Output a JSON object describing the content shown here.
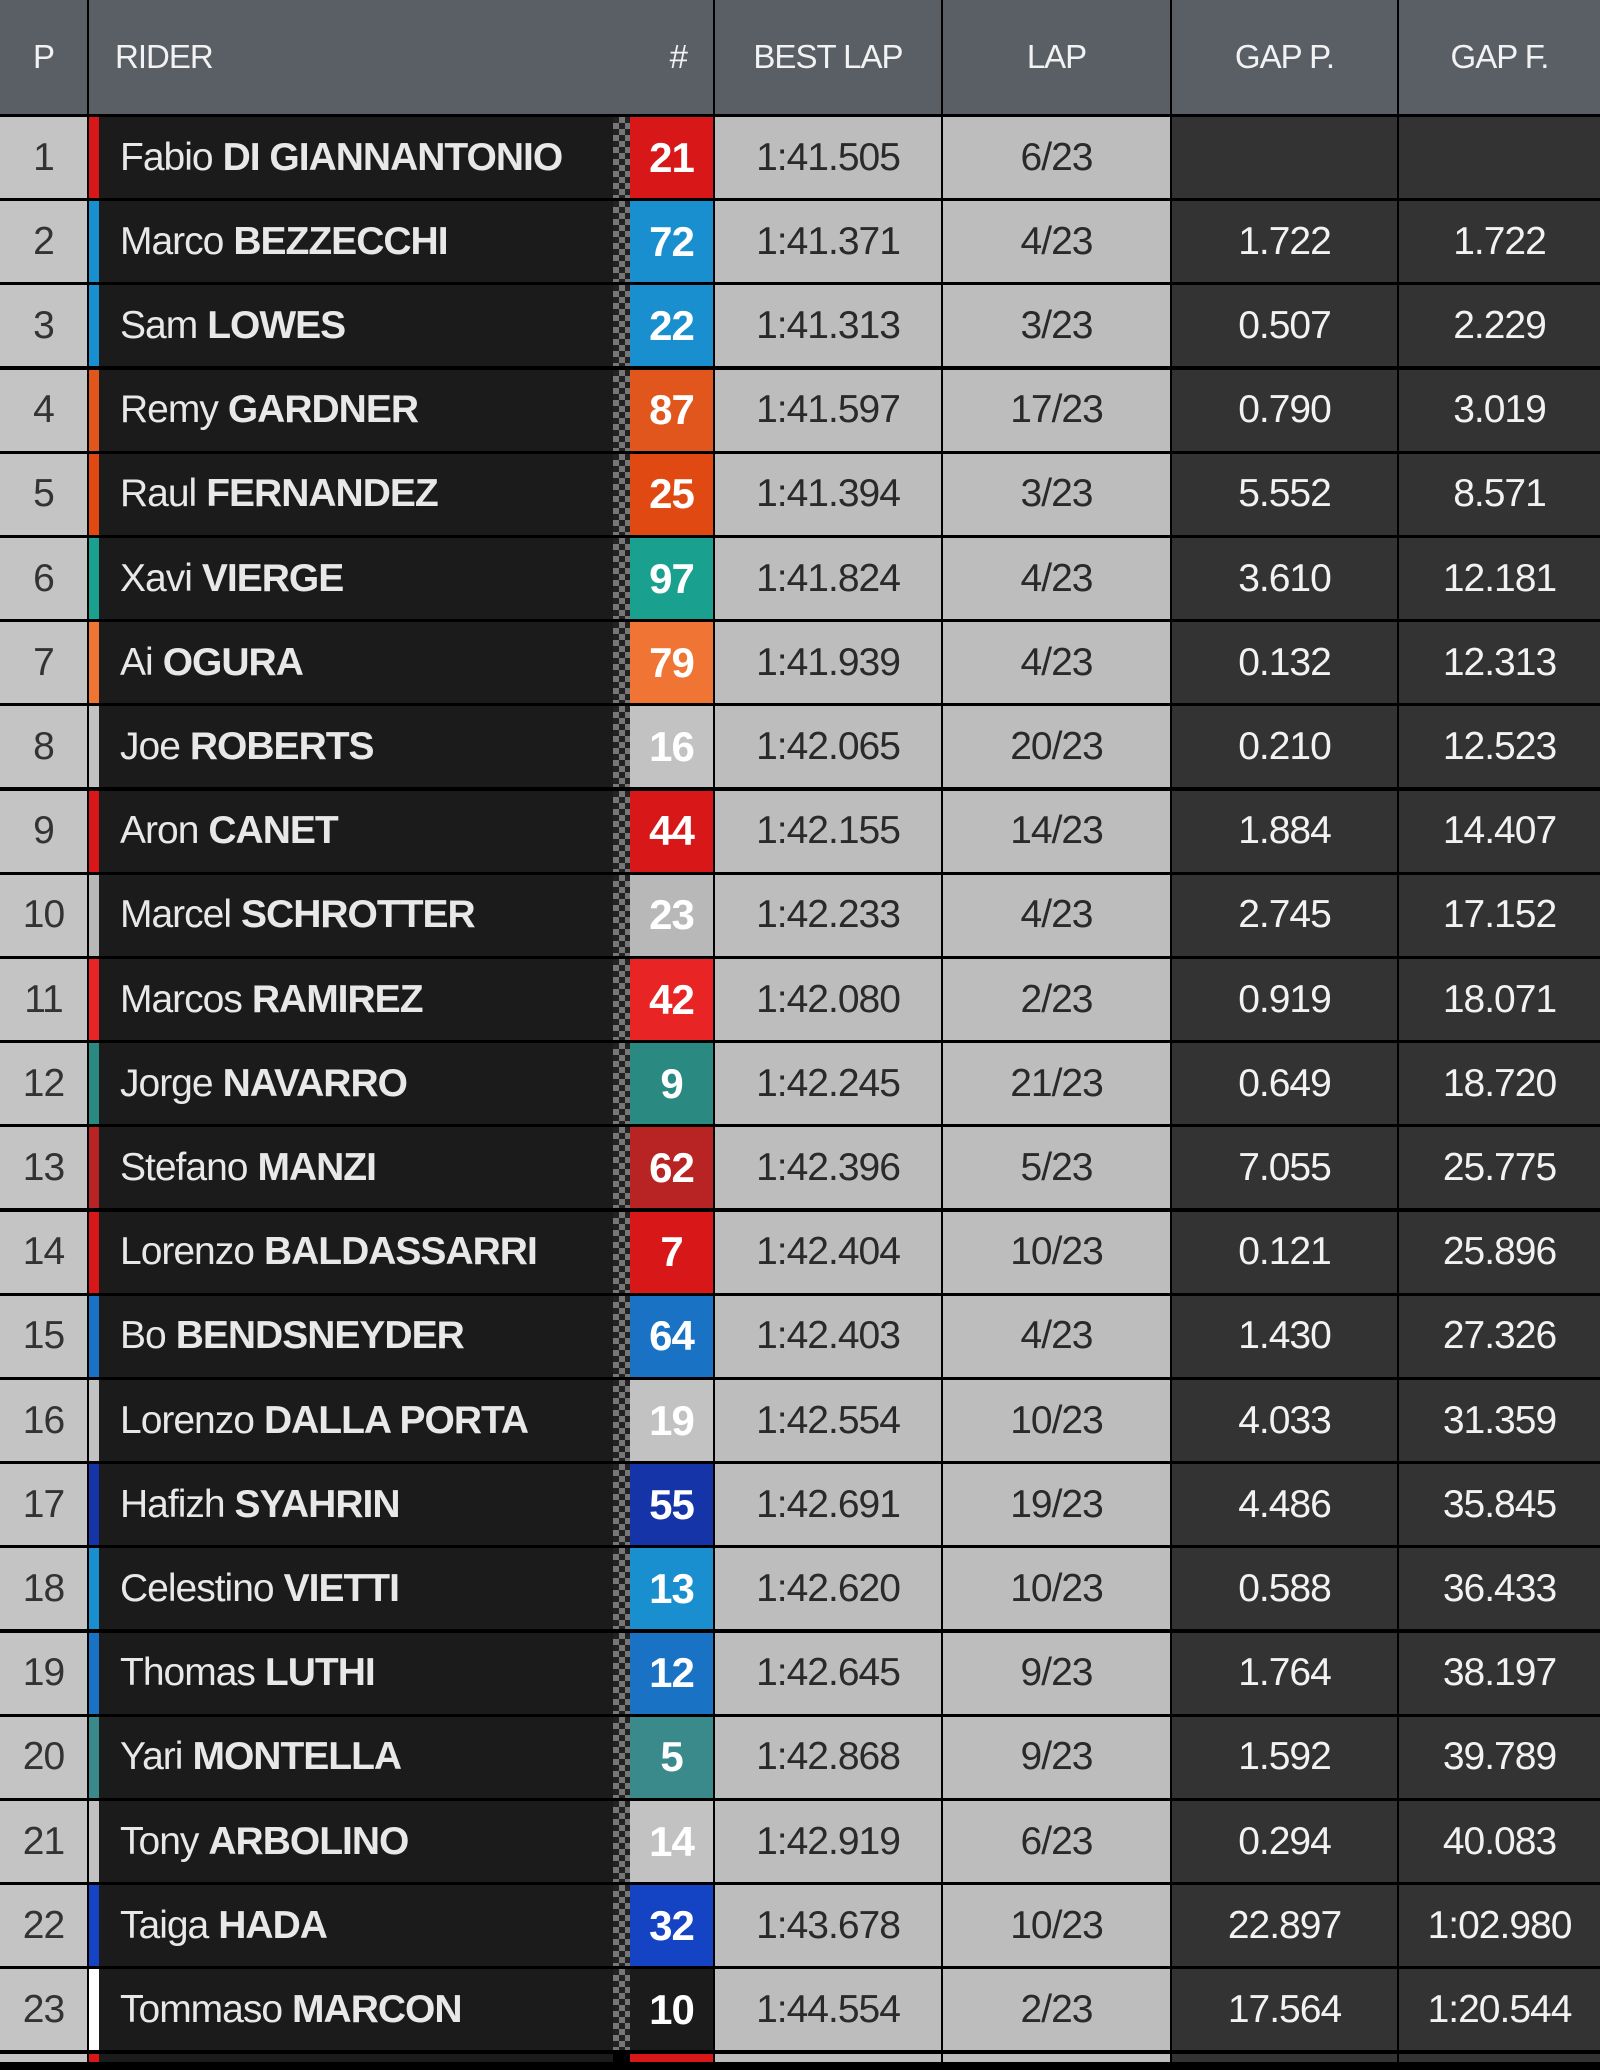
{
  "headers": {
    "p": "P",
    "rider": "RIDER",
    "num": "#",
    "best": "BEST LAP",
    "lap": "LAP",
    "gap_p": "GAP P.",
    "gap_f": "GAP F."
  },
  "rows": [
    {
      "p": "1",
      "first": "Fabio",
      "last": "DI GIANNANTONIO",
      "num": "21",
      "color": "#d81818",
      "best": "1:41.505",
      "lap": "6/23",
      "gap_p": "",
      "gap_f": ""
    },
    {
      "p": "2",
      "first": "Marco",
      "last": "BEZZECCHI",
      "num": "72",
      "color": "#1a8fd0",
      "best": "1:41.371",
      "lap": "4/23",
      "gap_p": "1.722",
      "gap_f": "1.722"
    },
    {
      "p": "3",
      "first": "Sam",
      "last": "LOWES",
      "num": "22",
      "color": "#1a8fd0",
      "best": "1:41.313",
      "lap": "3/23",
      "gap_p": "0.507",
      "gap_f": "2.229"
    },
    {
      "p": "4",
      "first": "Remy",
      "last": "GARDNER",
      "num": "87",
      "color": "#e0561c",
      "best": "1:41.597",
      "lap": "17/23",
      "gap_p": "0.790",
      "gap_f": "3.019"
    },
    {
      "p": "5",
      "first": "Raul",
      "last": "FERNANDEZ",
      "num": "25",
      "color": "#e04a12",
      "best": "1:41.394",
      "lap": "3/23",
      "gap_p": "5.552",
      "gap_f": "8.571"
    },
    {
      "p": "6",
      "first": "Xavi",
      "last": "VIERGE",
      "num": "97",
      "color": "#1aa08e",
      "best": "1:41.824",
      "lap": "4/23",
      "gap_p": "3.610",
      "gap_f": "12.181"
    },
    {
      "p": "7",
      "first": "Ai",
      "last": "OGURA",
      "num": "79",
      "color": "#f07434",
      "best": "1:41.939",
      "lap": "4/23",
      "gap_p": "0.132",
      "gap_f": "12.313"
    },
    {
      "p": "8",
      "first": "Joe",
      "last": "ROBERTS",
      "num": "16",
      "color": "#c2c2c2",
      "best": "1:42.065",
      "lap": "20/23",
      "gap_p": "0.210",
      "gap_f": "12.523"
    },
    {
      "p": "9",
      "first": "Aron",
      "last": "CANET",
      "num": "44",
      "color": "#d81818",
      "best": "1:42.155",
      "lap": "14/23",
      "gap_p": "1.884",
      "gap_f": "14.407"
    },
    {
      "p": "10",
      "first": "Marcel",
      "last": "SCHROTTER",
      "num": "23",
      "color": "#b8b8b8",
      "best": "1:42.233",
      "lap": "4/23",
      "gap_p": "2.745",
      "gap_f": "17.152"
    },
    {
      "p": "11",
      "first": "Marcos",
      "last": "RAMIREZ",
      "num": "42",
      "color": "#e82424",
      "best": "1:42.080",
      "lap": "2/23",
      "gap_p": "0.919",
      "gap_f": "18.071"
    },
    {
      "p": "12",
      "first": "Jorge",
      "last": "NAVARRO",
      "num": "9",
      "color": "#2a8a82",
      "best": "1:42.245",
      "lap": "21/23",
      "gap_p": "0.649",
      "gap_f": "18.720"
    },
    {
      "p": "13",
      "first": "Stefano",
      "last": "MANZI",
      "num": "62",
      "color": "#b82424",
      "best": "1:42.396",
      "lap": "5/23",
      "gap_p": "7.055",
      "gap_f": "25.775"
    },
    {
      "p": "14",
      "first": "Lorenzo",
      "last": "BALDASSARRI",
      "num": "7",
      "color": "#d81818",
      "best": "1:42.404",
      "lap": "10/23",
      "gap_p": "0.121",
      "gap_f": "25.896"
    },
    {
      "p": "15",
      "first": "Bo",
      "last": "BENDSNEYDER",
      "num": "64",
      "color": "#1a72c4",
      "best": "1:42.403",
      "lap": "4/23",
      "gap_p": "1.430",
      "gap_f": "27.326"
    },
    {
      "p": "16",
      "first": "Lorenzo",
      "last": "DALLA PORTA",
      "num": "19",
      "color": "#c2c2c2",
      "best": "1:42.554",
      "lap": "10/23",
      "gap_p": "4.033",
      "gap_f": "31.359"
    },
    {
      "p": "17",
      "first": "Hafizh",
      "last": "SYAHRIN",
      "num": "55",
      "color": "#1434a8",
      "best": "1:42.691",
      "lap": "19/23",
      "gap_p": "4.486",
      "gap_f": "35.845"
    },
    {
      "p": "18",
      "first": "Celestino",
      "last": "VIETTI",
      "num": "13",
      "color": "#1a8fd0",
      "best": "1:42.620",
      "lap": "10/23",
      "gap_p": "0.588",
      "gap_f": "36.433"
    },
    {
      "p": "19",
      "first": "Thomas",
      "last": "LUTHI",
      "num": "12",
      "color": "#1a72c4",
      "best": "1:42.645",
      "lap": "9/23",
      "gap_p": "1.764",
      "gap_f": "38.197"
    },
    {
      "p": "20",
      "first": "Yari",
      "last": "MONTELLA",
      "num": "5",
      "color": "#3a8a8c",
      "best": "1:42.868",
      "lap": "9/23",
      "gap_p": "1.592",
      "gap_f": "39.789"
    },
    {
      "p": "21",
      "first": "Tony",
      "last": "ARBOLINO",
      "num": "14",
      "color": "#c2c2c2",
      "best": "1:42.919",
      "lap": "6/23",
      "gap_p": "0.294",
      "gap_f": "40.083"
    },
    {
      "p": "22",
      "first": "Taiga",
      "last": "HADA",
      "num": "32",
      "color": "#1444c4",
      "best": "1:43.678",
      "lap": "10/23",
      "gap_p": "22.897",
      "gap_f": "1:02.980"
    },
    {
      "p": "23",
      "first": "Tommaso",
      "last": "MARCON",
      "num": "10",
      "color": "#1b1b1b",
      "stripe": "#ffffff",
      "best": "1:44.554",
      "lap": "2/23",
      "gap_p": "17.564",
      "gap_f": "1:20.544"
    }
  ]
}
